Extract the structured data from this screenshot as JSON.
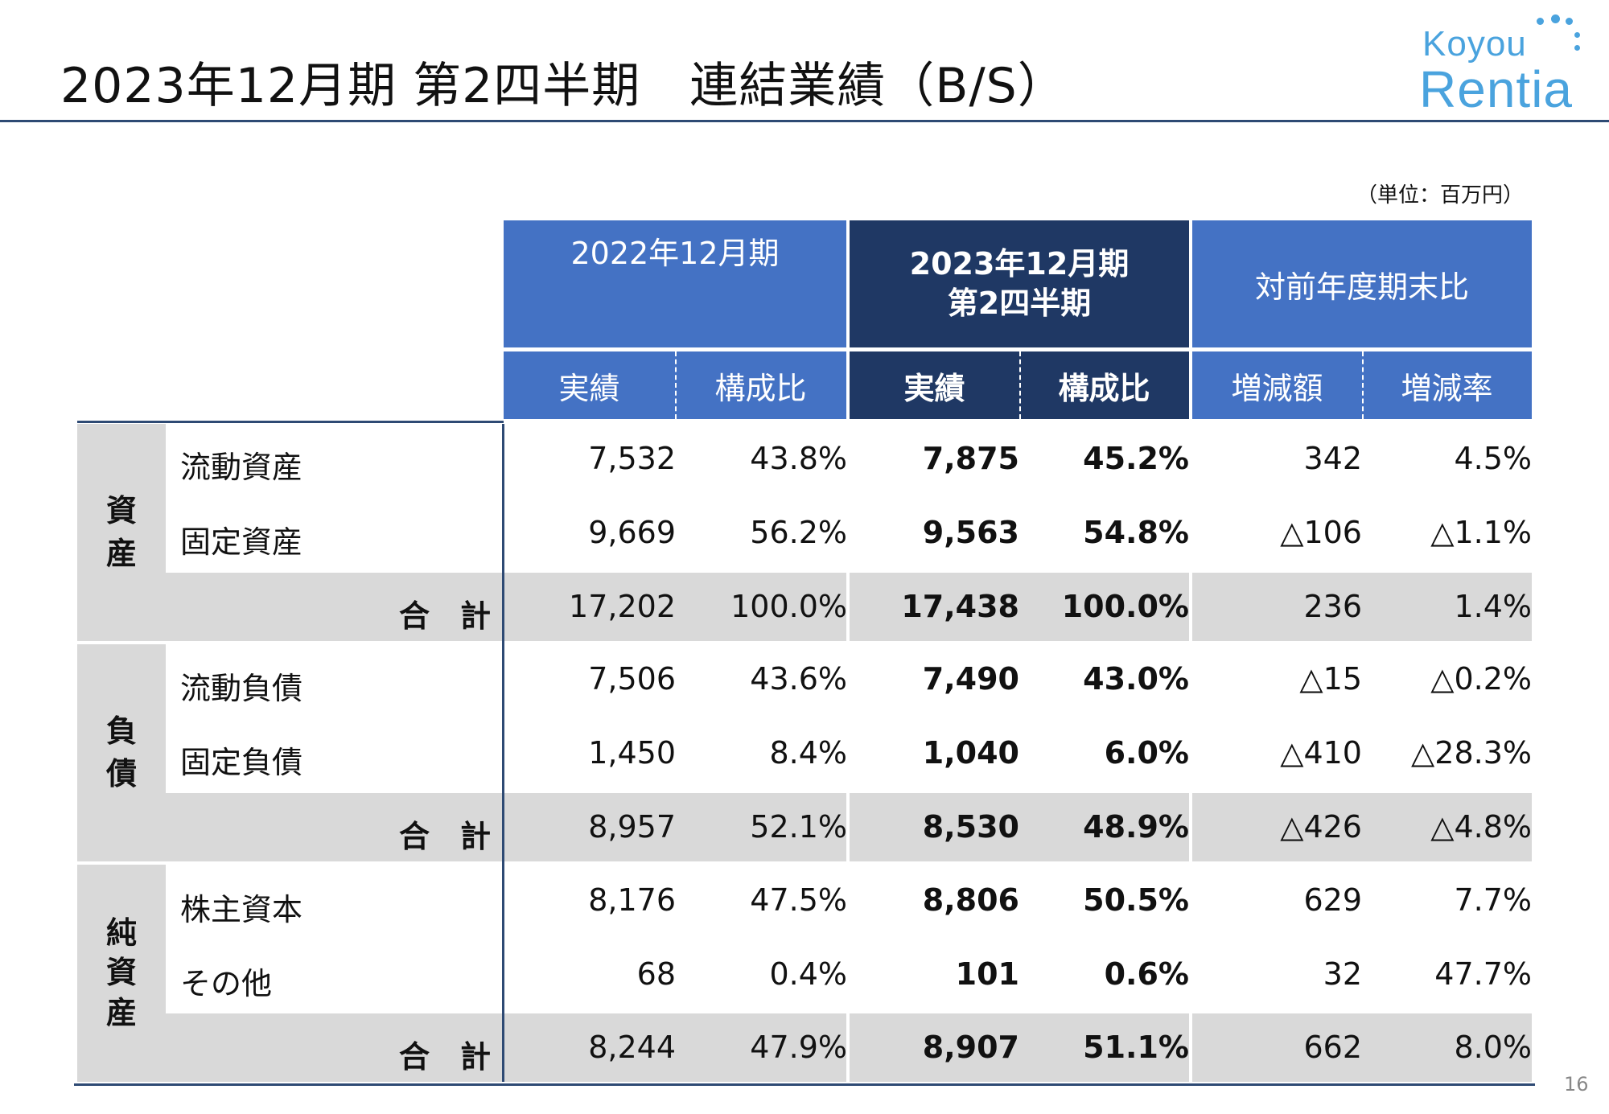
{
  "title": "2023年12月期 第2四半期　連結業績（B/S）",
  "logo": {
    "line1": "Koyou",
    "line2": "Rentia"
  },
  "unit": "（単位：百万円）",
  "headers": {
    "col2022": "2022年12月期",
    "col2023_line1": "2023年12月期",
    "col2023_line2": "第2四半期",
    "colyoy": "対前年度期末比",
    "sub": [
      "実績",
      "構成比",
      "実績",
      "構成比",
      "増減額",
      "増減率"
    ]
  },
  "sections": [
    {
      "category": [
        "資",
        "産"
      ],
      "rows": [
        {
          "label": "流動資産",
          "values": [
            "7,532",
            "43.8%",
            "7,875",
            "45.2%",
            "342",
            "4.5%"
          ]
        },
        {
          "label": "固定資産",
          "values": [
            "9,669",
            "56.2%",
            "9,563",
            "54.8%",
            "△106",
            "△1.1%"
          ]
        }
      ],
      "total": {
        "label": "合　計",
        "values": [
          "17,202",
          "100.0%",
          "17,438",
          "100.0%",
          "236",
          "1.4%"
        ]
      }
    },
    {
      "category": [
        "負",
        "債"
      ],
      "rows": [
        {
          "label": "流動負債",
          "values": [
            "7,506",
            "43.6%",
            "7,490",
            "43.0%",
            "△15",
            "△0.2%"
          ]
        },
        {
          "label": "固定負債",
          "values": [
            "1,450",
            "8.4%",
            "1,040",
            "6.0%",
            "△410",
            "△28.3%"
          ]
        }
      ],
      "total": {
        "label": "合　計",
        "values": [
          "8,957",
          "52.1%",
          "8,530",
          "48.9%",
          "△426",
          "△4.8%"
        ]
      }
    },
    {
      "category": [
        "純",
        "資",
        "産"
      ],
      "rows": [
        {
          "label": "株主資本",
          "values": [
            "8,176",
            "47.5%",
            "8,806",
            "50.5%",
            "629",
            "7.7%"
          ]
        },
        {
          "label": "その他",
          "values": [
            "68",
            "0.4%",
            "101",
            "0.6%",
            "32",
            "47.7%"
          ]
        }
      ],
      "total": {
        "label": "合　計",
        "values": [
          "8,244",
          "47.9%",
          "8,907",
          "51.1%",
          "662",
          "8.0%"
        ]
      }
    }
  ],
  "page_number": "16",
  "colors": {
    "header_light": "#4472c4",
    "header_dark": "#1f3864",
    "band": "#d9d9d9",
    "rule": "#2e4a74",
    "logo": "#4aa3de"
  }
}
